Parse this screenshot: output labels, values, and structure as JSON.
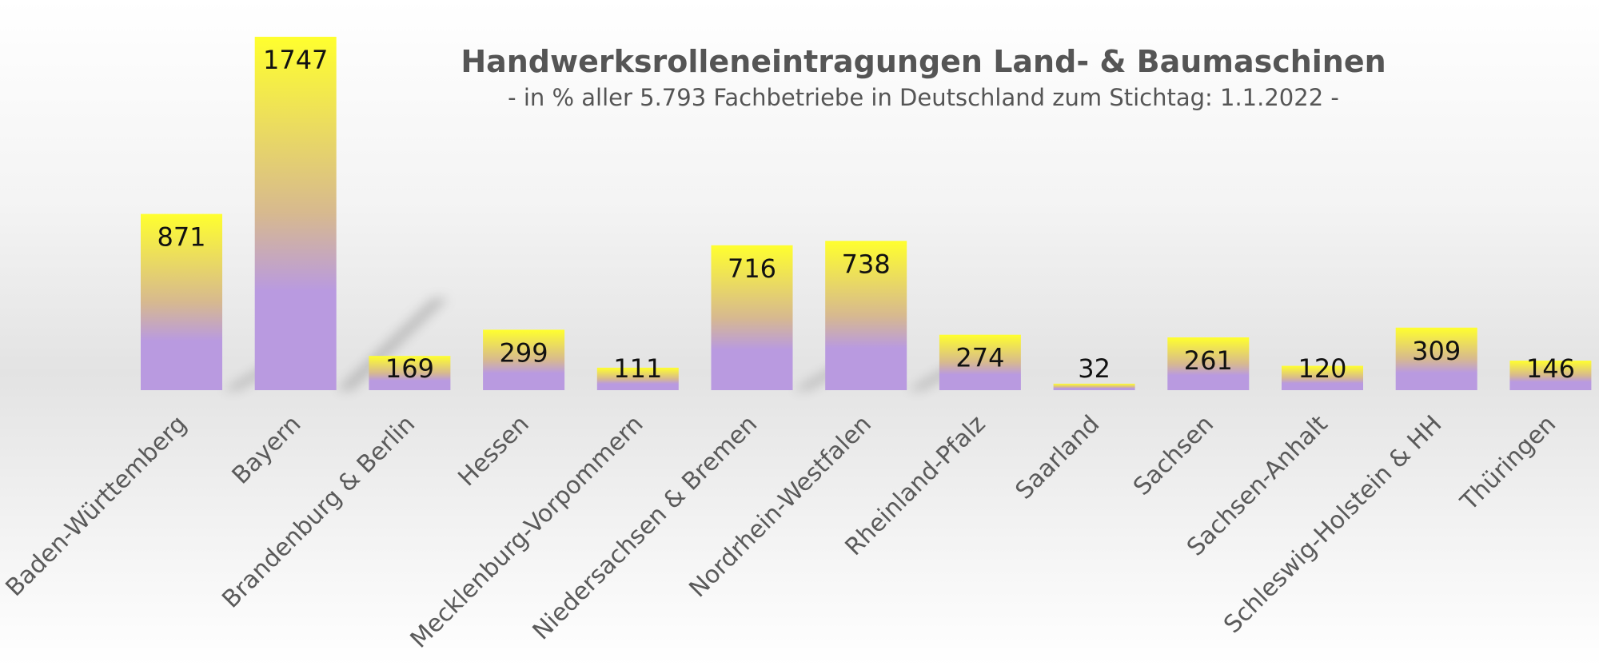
{
  "chart_data": {
    "type": "bar",
    "title": "Handwerksrolleneintragungen Land- & Baumaschinen",
    "subtitle": "- in % aller 5.793 Fachbetriebe in Deutschland zum Stichtag: 1.1.2022 -",
    "categories": [
      "Baden-Württemberg",
      "Bayern",
      "Brandenburg & Berlin",
      "Hessen",
      "Mecklenburg-Vorpommern",
      "Niedersachsen & Bremen",
      "Nordrhein-Westfalen",
      "Rheinland-Pfalz",
      "Saarland",
      "Sachsen",
      "Sachsen-Anhalt",
      "Schleswig-Holstein & HH",
      "Thüringen"
    ],
    "values": [
      871,
      1747,
      169,
      299,
      111,
      716,
      738,
      274,
      32,
      261,
      120,
      309,
      146
    ],
    "ylim": [
      0,
      1747
    ],
    "grid": false,
    "legend": "none",
    "colors": {
      "bar_top": "#ffff2e",
      "bar_middle": "#d7b98f",
      "bar_bottom": "#b99ae0",
      "title": "#555555",
      "category_label": "#5a5a5a",
      "value_label": "#111111"
    }
  }
}
